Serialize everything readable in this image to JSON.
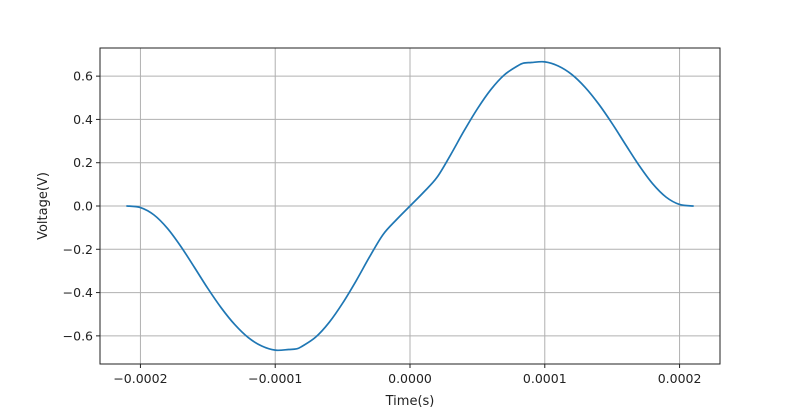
{
  "chart_data": {
    "type": "line",
    "title": "",
    "xlabel": "Time(s)",
    "ylabel": "Voltage(V)",
    "xlim": [
      -0.00023,
      0.00023
    ],
    "ylim": [
      -0.73,
      0.73
    ],
    "grid": true,
    "legend": "none",
    "xticks": [
      -0.0002,
      -0.0001,
      0.0,
      0.0001,
      0.0002
    ],
    "xtick_labels": [
      "−0.0002",
      "−0.0001",
      "0.0000",
      "0.0001",
      "0.0002"
    ],
    "yticks": [
      -0.6,
      -0.4,
      -0.2,
      0.0,
      0.2,
      0.4,
      0.6
    ],
    "ytick_labels": [
      "−0.6",
      "−0.4",
      "−0.2",
      "0.0",
      "0.2",
      "0.4",
      "0.6"
    ],
    "series": [
      {
        "color": "#1f77b4",
        "x": [
          -0.00021,
          -0.0002,
          -0.00019,
          -0.00018,
          -0.00017,
          -0.00016,
          -0.00015,
          -0.00014,
          -0.00013,
          -0.00012,
          -0.00011,
          -0.0001,
          -9e-05,
          -8.4e-05,
          -8e-05,
          -7e-05,
          -6e-05,
          -5e-05,
          -4e-05,
          -3e-05,
          -2e-05,
          -1e-05,
          0.0,
          1e-05,
          2e-05,
          3e-05,
          4e-05,
          5e-05,
          6e-05,
          7e-05,
          8e-05,
          8.4e-05,
          9e-05,
          0.0001,
          0.00011,
          0.00012,
          0.00013,
          0.00014,
          0.00015,
          0.00016,
          0.00017,
          0.00018,
          0.00019,
          0.0002,
          0.00021
        ],
        "y": [
          0.0,
          -0.007,
          -0.041,
          -0.103,
          -0.187,
          -0.283,
          -0.381,
          -0.471,
          -0.548,
          -0.608,
          -0.647,
          -0.666,
          -0.663,
          -0.66,
          -0.648,
          -0.606,
          -0.538,
          -0.449,
          -0.346,
          -0.235,
          -0.132,
          -0.063,
          0.0,
          0.063,
          0.132,
          0.235,
          0.346,
          0.449,
          0.538,
          0.606,
          0.648,
          0.66,
          0.663,
          0.666,
          0.647,
          0.608,
          0.548,
          0.471,
          0.381,
          0.283,
          0.187,
          0.103,
          0.041,
          0.007,
          0.0
        ]
      }
    ]
  }
}
